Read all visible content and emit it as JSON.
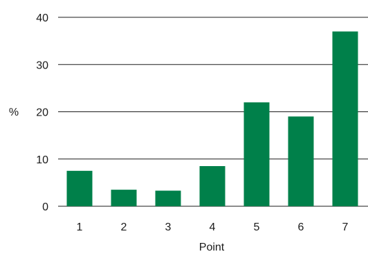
{
  "chart_data": {
    "type": "bar",
    "title": "",
    "xlabel": "Point",
    "ylabel": "%",
    "categories": [
      "1",
      "2",
      "3",
      "4",
      "5",
      "6",
      "7"
    ],
    "values": [
      7.5,
      3.5,
      3.3,
      8.5,
      22,
      19,
      37
    ],
    "ylim": [
      0,
      40
    ],
    "yticks": [
      "0",
      "10",
      "20",
      "30",
      "40"
    ],
    "grid": "horizontal",
    "bar_color": "#00804a",
    "axis_color": "#1a1a1a"
  }
}
